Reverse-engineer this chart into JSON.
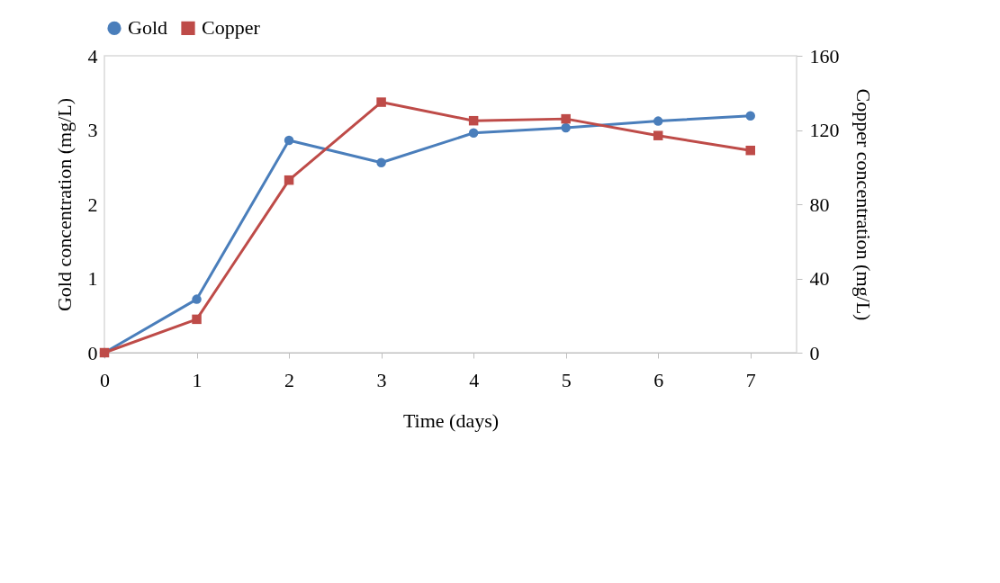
{
  "chart_data": {
    "type": "line",
    "xlabel": "Time (days)",
    "ylabel": "Gold concentration (mg/L)",
    "y2label": "Copper concentration (mg/L)",
    "x": [
      0,
      1,
      2,
      3,
      4,
      5,
      6,
      7
    ],
    "xlim": [
      0,
      7.5
    ],
    "xticks": [
      0,
      1,
      2,
      3,
      4,
      5,
      6,
      7
    ],
    "ylim": [
      0,
      4
    ],
    "yticks": [
      0,
      1,
      2,
      3,
      4
    ],
    "y2lim": [
      0,
      160
    ],
    "y2ticks": [
      0,
      40,
      80,
      120,
      160
    ],
    "series": [
      {
        "name": "Gold",
        "color": "#4a7ebb",
        "marker": "circle",
        "values": [
          0,
          0.72,
          2.86,
          2.56,
          2.96,
          3.03,
          3.12,
          3.19
        ]
      },
      {
        "name": "Copper",
        "color": "#be4b48",
        "marker": "square",
        "axis": "y2",
        "values": [
          0,
          18,
          93,
          135,
          125,
          126,
          117,
          109
        ]
      }
    ],
    "legend": "top",
    "grid": false,
    "line_style": "solid"
  }
}
